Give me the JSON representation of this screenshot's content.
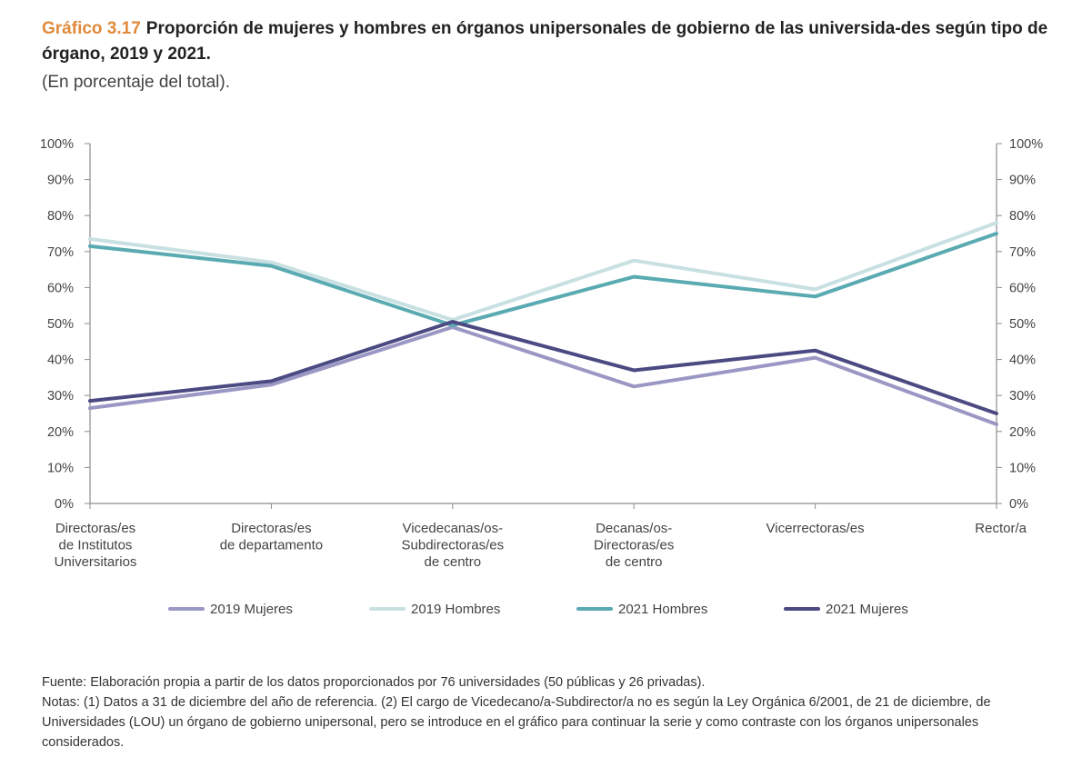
{
  "title_number": "Gráfico 3.17",
  "title_text": "Proporción de mujeres y hombres en órganos unipersonales de gobierno de las universida-des según tipo de órgano, 2019 y 2021.",
  "subtitle": "(En porcentaje del total).",
  "chart_data": {
    "type": "line",
    "categories": [
      [
        "Directoras/es",
        "de Institutos",
        "Universitarios"
      ],
      [
        "Directoras/es",
        "de departamento"
      ],
      [
        "Vicedecanas/os-",
        "Subdirectoras/es",
        "de centro"
      ],
      [
        "Decanas/os-",
        "Directoras/es",
        "de centro"
      ],
      [
        "Vicerrectoras/es"
      ],
      [
        "Rector/a"
      ]
    ],
    "ylim": [
      0,
      100
    ],
    "yticks": [
      "0%",
      "10%",
      "20%",
      "30%",
      "40%",
      "50%",
      "60%",
      "70%",
      "80%",
      "90%",
      "100%"
    ],
    "series": [
      {
        "name": "2019 Mujeres",
        "color": "#9a97c4",
        "values": [
          26.5,
          33,
          49,
          32.5,
          40.5,
          22
        ]
      },
      {
        "name": "2019 Hombres",
        "color": "#c9e0e2",
        "values": [
          73.5,
          67,
          51,
          67.5,
          59.5,
          78
        ]
      },
      {
        "name": "2021 Hombres",
        "color": "#5aaab2",
        "values": [
          71.5,
          66,
          49.5,
          63,
          57.5,
          75
        ]
      },
      {
        "name": "2021 Mujeres",
        "color": "#4b4a82",
        "values": [
          28.5,
          34,
          50.5,
          37,
          42.5,
          25
        ]
      }
    ]
  },
  "footnotes": {
    "source": "Fuente: Elaboración propia a partir de los datos proporcionados por 76 universidades (50 públicas y 26 privadas).",
    "notes": "Notas: (1) Datos a 31 de diciembre del año de referencia. (2) El cargo de Vicedecano/a-Subdirector/a no es según la Ley Orgánica 6/2001, de 21 de diciembre, de Universidades (LOU) un órgano de gobierno unipersonal, pero se introduce en el gráfico para continuar la serie y como contraste con los órganos unipersonales considerados."
  }
}
